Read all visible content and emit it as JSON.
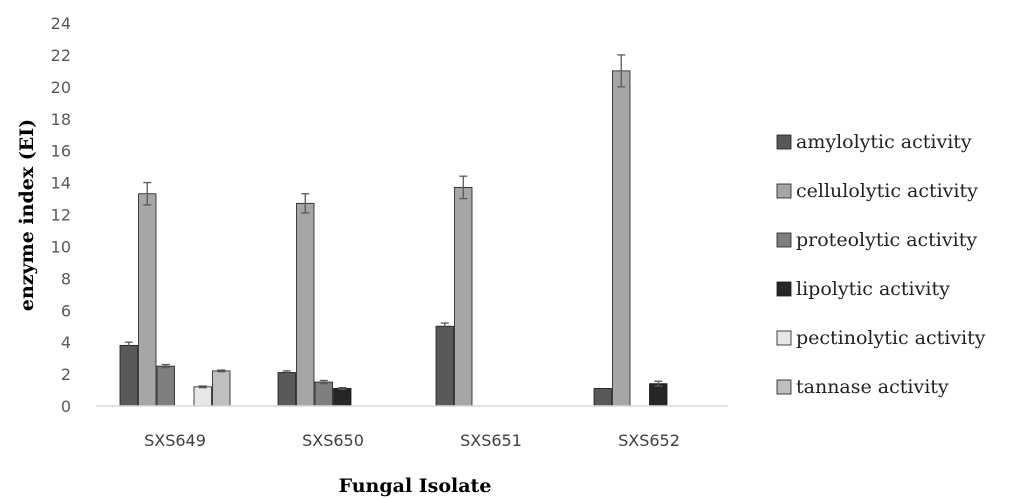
{
  "chart_data": {
    "type": "bar",
    "title": "",
    "xlabel": "Fungal Isolate",
    "ylabel": "enzyme index (EI)",
    "ylim": [
      0,
      24
    ],
    "yticks": [
      0,
      2,
      4,
      6,
      8,
      10,
      12,
      14,
      16,
      18,
      20,
      22,
      24
    ],
    "grid": false,
    "legend_position": "right",
    "categories": [
      "SXS649",
      "SXS650",
      "SXS651",
      "SXS652"
    ],
    "series": [
      {
        "name": "amylolytic activity",
        "color": "#595959",
        "values": [
          3.8,
          2.1,
          5.0,
          1.1
        ],
        "errors": [
          0.2,
          0.1,
          0.2,
          0.0
        ]
      },
      {
        "name": "cellulolytic activity",
        "color": "#a6a6a6",
        "values": [
          13.3,
          12.7,
          13.7,
          21.0
        ],
        "errors": [
          0.7,
          0.6,
          0.7,
          1.0
        ]
      },
      {
        "name": "proteolytic activity",
        "color": "#7f7f7f",
        "values": [
          2.5,
          1.5,
          0,
          0
        ],
        "errors": [
          0.1,
          0.1,
          0,
          0
        ]
      },
      {
        "name": "lipolytic activity",
        "color": "#262626",
        "values": [
          0,
          1.1,
          0,
          1.4
        ],
        "errors": [
          0,
          0.05,
          0,
          0.15
        ]
      },
      {
        "name": "pectinolytic activity",
        "color": "#e7e7e7",
        "values": [
          1.2,
          0,
          0,
          0
        ],
        "errors": [
          0.05,
          0,
          0,
          0
        ]
      },
      {
        "name": "tannase activity",
        "color": "#bfbfbf",
        "values": [
          2.2,
          0,
          0,
          0
        ],
        "errors": [
          0.05,
          0,
          0,
          0
        ]
      }
    ]
  }
}
